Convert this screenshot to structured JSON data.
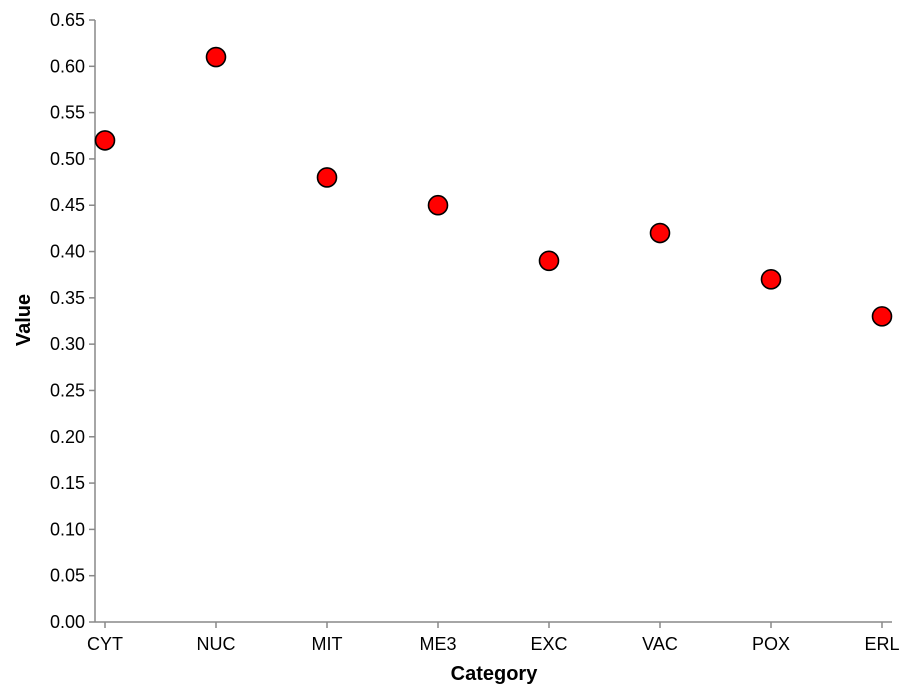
{
  "chart_data": {
    "type": "scatter",
    "title": "",
    "xlabel": "Category",
    "ylabel": "Value",
    "categories": [
      "CYT",
      "NUC",
      "MIT",
      "ME3",
      "EXC",
      "VAC",
      "POX",
      "ERL"
    ],
    "series": [
      {
        "values": [
          0.52,
          0.61,
          0.48,
          0.45,
          0.39,
          0.42,
          0.37,
          0.33
        ]
      }
    ],
    "ylim": [
      0,
      0.65
    ],
    "yticks": [
      "0.00",
      "0.05",
      "0.10",
      "0.15",
      "0.20",
      "0.25",
      "0.30",
      "0.35",
      "0.40",
      "0.45",
      "0.50",
      "0.55",
      "0.60",
      "0.65"
    ],
    "grid": false,
    "legend": "none",
    "marker_color": "#ff0000",
    "marker_edge_color": "#000000",
    "axis_color": "#888888"
  }
}
